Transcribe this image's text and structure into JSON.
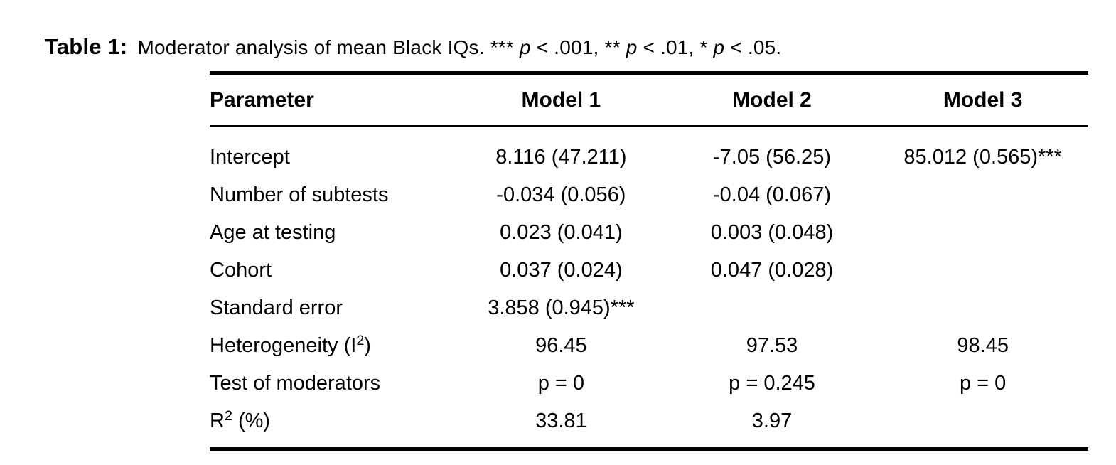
{
  "caption": {
    "label": "Table 1:",
    "segments": [
      {
        "text": "Moderator analysis of mean Black IQs. *** "
      },
      {
        "text": "p"
      },
      {
        "text": " < .001, ** "
      },
      {
        "text": "p"
      },
      {
        "text": " < .01, * "
      },
      {
        "text": "p"
      },
      {
        "text": " < .05."
      }
    ]
  },
  "table": {
    "columns": [
      "Parameter",
      "Model 1",
      "Model 2",
      "Model 3"
    ],
    "rows": [
      {
        "parameter": "Intercept",
        "model1": "8.116 (47.211)",
        "model2": "-7.05 (56.25)",
        "model3": "85.012 (0.565)***"
      },
      {
        "parameter": "Number of subtests",
        "model1": "-0.034 (0.056)",
        "model2": "-0.04 (0.067)",
        "model3": ""
      },
      {
        "parameter": "Age at testing",
        "model1": "0.023 (0.041)",
        "model2": "0.003 (0.048)",
        "model3": ""
      },
      {
        "parameter": "Cohort",
        "model1": "0.037 (0.024)",
        "model2": "0.047 (0.028)",
        "model3": ""
      },
      {
        "parameter": "Standard error",
        "model1": "3.858 (0.945)***",
        "model2": "",
        "model3": ""
      },
      {
        "param_base": "Heterogeneity (I",
        "param_sup": "2",
        "param_rest": ")",
        "model1": "96.45",
        "model2": "97.53",
        "model3": "98.45"
      },
      {
        "parameter": "Test of moderators",
        "model1": "p = 0",
        "model2": "p = 0.245",
        "model3": "p = 0"
      },
      {
        "param_base": "R",
        "param_sup": "2",
        "param_rest": " (%)",
        "model1": "33.81",
        "model2": "3.97",
        "model3": ""
      }
    ]
  }
}
